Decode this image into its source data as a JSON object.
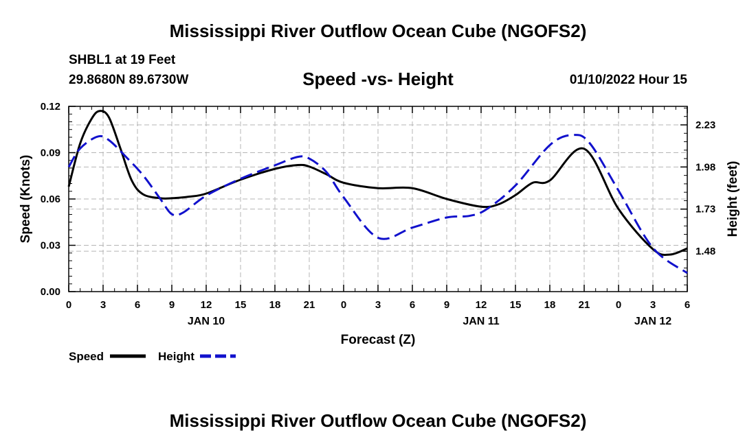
{
  "header": {
    "title": "Mississippi River Outflow Ocean Cube (NGOFS2)",
    "station": "SHBL1 at 19 Feet",
    "coords": "29.8680N  89.6730W",
    "subtitle": "Speed -vs- Height",
    "datestamp": "01/10/2022 Hour 15"
  },
  "footer": {
    "title": "Mississippi River Outflow Ocean Cube (NGOFS2)"
  },
  "chart_data": {
    "type": "line",
    "title": "Speed -vs- Height",
    "xlabel": "Forecast (Z)",
    "ylabel": "Speed (Knots)",
    "y2label": "Height (feet)",
    "x_unit": "hours from 2022-01-10 00Z",
    "xlim": [
      0,
      54
    ],
    "ylim": [
      0,
      0.12
    ],
    "y2lim": [
      1.24,
      2.34
    ],
    "x_tick_values": [
      0,
      3,
      6,
      9,
      12,
      15,
      18,
      21,
      24,
      27,
      30,
      33,
      36,
      39,
      42,
      45,
      48,
      51,
      54
    ],
    "x_tick_labels": [
      "0",
      "3",
      "6",
      "9",
      "12",
      "15",
      "18",
      "21",
      "0",
      "3",
      "6",
      "9",
      "12",
      "15",
      "18",
      "21",
      "0",
      "3",
      "6"
    ],
    "date_labels": [
      {
        "x": 12,
        "text": "JAN 10"
      },
      {
        "x": 36,
        "text": "JAN 11"
      },
      {
        "x": 51,
        "text": "JAN 12"
      }
    ],
    "y_ticks": [
      0,
      0.03,
      0.06,
      0.09,
      0.12
    ],
    "y_tick_labels": [
      "0.00",
      "0.03",
      "0.06",
      "0.09",
      "0.12"
    ],
    "y2_ticks": [
      1.48,
      1.73,
      1.98,
      2.23
    ],
    "y2_tick_labels": [
      "1.48",
      "1.73",
      "1.98",
      "2.23"
    ],
    "grid": true,
    "series": [
      {
        "name": "Speed",
        "axis": "left",
        "color": "#000000",
        "dash": "solid",
        "x": [
          0,
          1,
          2,
          2.7,
          3.5,
          4.5,
          5.5,
          6.5,
          8,
          9,
          10.5,
          12,
          15,
          18,
          20,
          21,
          22.5,
          24,
          27,
          30,
          33,
          36,
          37.5,
          39,
          40.5,
          42,
          45,
          48,
          51,
          52.5,
          54
        ],
        "y": [
          0.068,
          0.096,
          0.112,
          0.117,
          0.113,
          0.093,
          0.072,
          0.063,
          0.0605,
          0.0605,
          0.0615,
          0.0635,
          0.0725,
          0.0795,
          0.082,
          0.081,
          0.076,
          0.0705,
          0.067,
          0.067,
          0.06,
          0.055,
          0.0565,
          0.0625,
          0.0705,
          0.072,
          0.0925,
          0.0535,
          0.0275,
          0.024,
          0.028
        ]
      },
      {
        "name": "Height",
        "axis": "right",
        "color": "#1111cc",
        "dash": "dashed",
        "x": [
          0,
          1,
          2.5,
          3.5,
          5,
          6.5,
          8,
          9,
          10,
          12,
          15,
          18,
          20,
          21,
          22.5,
          24,
          27,
          30,
          33,
          35,
          36.5,
          39,
          42,
          44,
          45.5,
          48,
          51,
          54
        ],
        "y": [
          1.98,
          2.09,
          2.16,
          2.14,
          2.04,
          1.93,
          1.79,
          1.7,
          1.71,
          1.81,
          1.91,
          1.99,
          2.04,
          2.03,
          1.95,
          1.8,
          1.56,
          1.62,
          1.68,
          1.69,
          1.73,
          1.87,
          2.11,
          2.17,
          2.12,
          1.84,
          1.5,
          1.35
        ]
      }
    ]
  }
}
